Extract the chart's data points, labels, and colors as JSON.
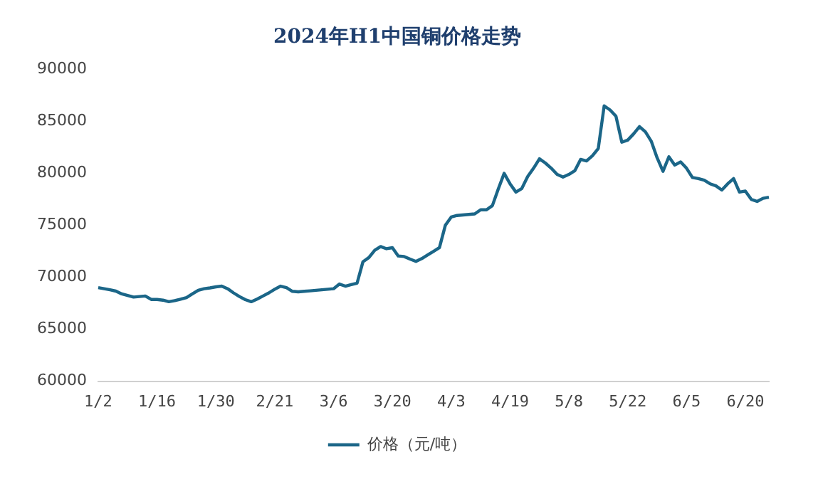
{
  "chart_data": {
    "type": "line",
    "title": "2024年H1中国铜价格走势",
    "categories": [
      "1/2",
      null,
      null,
      null,
      null,
      null,
      null,
      null,
      null,
      null,
      "1/16",
      null,
      null,
      null,
      null,
      null,
      null,
      null,
      null,
      null,
      "1/30",
      null,
      null,
      null,
      null,
      null,
      null,
      null,
      null,
      null,
      "2/21",
      null,
      null,
      null,
      null,
      null,
      null,
      null,
      null,
      null,
      "3/6",
      null,
      null,
      null,
      null,
      null,
      null,
      null,
      null,
      null,
      "3/20",
      null,
      null,
      null,
      null,
      null,
      null,
      null,
      null,
      null,
      "4/3",
      null,
      null,
      null,
      null,
      null,
      null,
      null,
      null,
      null,
      "4/19",
      null,
      null,
      null,
      null,
      null,
      null,
      null,
      null,
      null,
      "5/8",
      null,
      null,
      null,
      null,
      null,
      null,
      null,
      null,
      null,
      "5/22",
      null,
      null,
      null,
      null,
      null,
      null,
      null,
      null,
      null,
      "6/5",
      null,
      null,
      null,
      null,
      null,
      null,
      null,
      null,
      null,
      "6/20",
      null,
      null,
      null,
      null
    ],
    "series": [
      {
        "name": "价格（元/吨）",
        "color": "#1b6688",
        "values": [
          69000,
          68900,
          68800,
          68670,
          68400,
          68250,
          68100,
          68150,
          68200,
          67870,
          67870,
          67800,
          67650,
          67750,
          67900,
          68050,
          68400,
          68750,
          68900,
          68980,
          69080,
          69150,
          68900,
          68500,
          68150,
          67850,
          67650,
          67900,
          68200,
          68500,
          68850,
          69150,
          69000,
          68650,
          68600,
          68650,
          68700,
          68750,
          68800,
          68850,
          68900,
          69350,
          69150,
          69300,
          69440,
          71500,
          71900,
          72600,
          72960,
          72750,
          72850,
          72050,
          72000,
          71750,
          71530,
          71800,
          72150,
          72500,
          72860,
          75000,
          75800,
          75950,
          76000,
          76050,
          76100,
          76500,
          76500,
          76900,
          78500,
          80000,
          79000,
          78200,
          78550,
          79700,
          80500,
          81400,
          81000,
          80500,
          79900,
          79650,
          79900,
          80250,
          81350,
          81200,
          81700,
          82400,
          86500,
          86100,
          85500,
          83000,
          83200,
          83800,
          84500,
          84000,
          83100,
          81500,
          80200,
          81600,
          80800,
          81100,
          80500,
          79600,
          79500,
          79350,
          79000,
          78800,
          78400,
          79000,
          79500,
          78200,
          78300,
          77500,
          77300,
          77600,
          77700
        ]
      }
    ],
    "ylim": [
      60000,
      90000
    ],
    "yticks": [
      60000,
      65000,
      70000,
      75000,
      80000,
      85000,
      90000
    ],
    "grid": false,
    "legend": "bottom",
    "marker": "none",
    "line_style": "solid"
  }
}
